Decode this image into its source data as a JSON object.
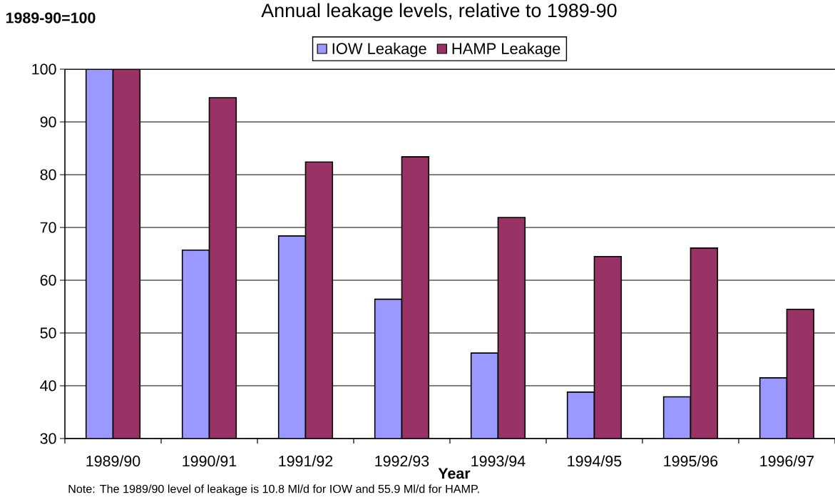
{
  "chart_data": {
    "type": "bar",
    "title": "Annual leakage levels, relative to 1989-90",
    "ylabel": "1989-90=100",
    "xlabel": "Year",
    "categories": [
      "1989/90",
      "1990/91",
      "1991/92",
      "1992/93",
      "1993/94",
      "1994/95",
      "1995/96",
      "1996/97"
    ],
    "series": [
      {
        "name": "IOW Leakage",
        "color": "#9999ff",
        "values": [
          100,
          65.7,
          68.4,
          56.4,
          46.2,
          38.8,
          37.9,
          41.5
        ]
      },
      {
        "name": "HAMP Leakage",
        "color": "#993366",
        "values": [
          100,
          94.6,
          82.4,
          83.4,
          71.9,
          64.5,
          66.1,
          54.5
        ]
      }
    ],
    "ylim": [
      30,
      100
    ],
    "yticks": [
      30,
      40,
      50,
      60,
      70,
      80,
      90,
      100
    ],
    "grid": "y",
    "legend": "top",
    "annotations": [
      "Note: The 1989/90 level of leakage is 10.8 Ml/d for IOW and 55.9 Ml/d for HAMP."
    ]
  }
}
